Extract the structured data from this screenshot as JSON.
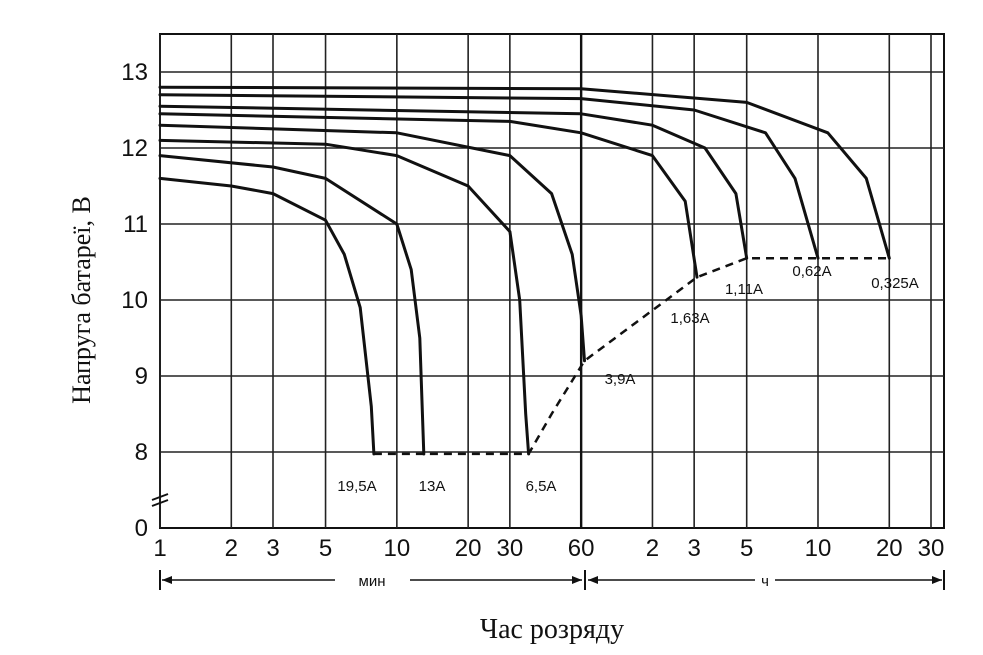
{
  "chart_data": {
    "type": "line",
    "ylabel": "Напруга батареї, В",
    "xlabel": "Час розряду",
    "x_scale": "log",
    "x_units": {
      "minutes_label": "мин",
      "hours_label": "ч"
    },
    "y_ticks": [
      "13",
      "12",
      "11",
      "10",
      "9",
      "8",
      "0"
    ],
    "x_ticks": [
      {
        "label": "1",
        "minutes": 1
      },
      {
        "label": "2",
        "minutes": 2
      },
      {
        "label": "3",
        "minutes": 3
      },
      {
        "label": "5",
        "minutes": 5
      },
      {
        "label": "10",
        "minutes": 10
      },
      {
        "label": "20",
        "minutes": 20
      },
      {
        "label": "30",
        "minutes": 30
      },
      {
        "label": "60",
        "minutes": 60
      },
      {
        "label": "2",
        "minutes": 120
      },
      {
        "label": "3",
        "minutes": 180
      },
      {
        "label": "5",
        "minutes": 300
      },
      {
        "label": "10",
        "minutes": 600
      },
      {
        "label": "20",
        "minutes": 1200
      },
      {
        "label": "30",
        "minutes": 1800
      }
    ],
    "series": [
      {
        "name": "19,5A",
        "points": [
          [
            1,
            11.6
          ],
          [
            2,
            11.5
          ],
          [
            3,
            11.4
          ],
          [
            5,
            11.05
          ],
          [
            6,
            10.6
          ],
          [
            7,
            9.9
          ],
          [
            7.8,
            8.6
          ],
          [
            8,
            7.8
          ]
        ]
      },
      {
        "name": "13A",
        "points": [
          [
            1,
            11.9
          ],
          [
            3,
            11.75
          ],
          [
            5,
            11.6
          ],
          [
            10,
            11.0
          ],
          [
            11.5,
            10.4
          ],
          [
            12.5,
            9.5
          ],
          [
            13,
            7.8
          ]
        ]
      },
      {
        "name": "6,5A",
        "points": [
          [
            1,
            12.1
          ],
          [
            5,
            12.05
          ],
          [
            10,
            11.9
          ],
          [
            20,
            11.5
          ],
          [
            30,
            10.9
          ],
          [
            33,
            10.0
          ],
          [
            35,
            8.5
          ],
          [
            36,
            7.8
          ]
        ]
      },
      {
        "name": "3,9A",
        "points": [
          [
            1,
            12.3
          ],
          [
            10,
            12.2
          ],
          [
            30,
            11.9
          ],
          [
            45,
            11.4
          ],
          [
            55,
            10.6
          ],
          [
            60,
            9.8
          ],
          [
            62,
            9.2
          ]
        ]
      },
      {
        "name": "1,63A",
        "points": [
          [
            1,
            12.45
          ],
          [
            30,
            12.35
          ],
          [
            60,
            12.2
          ],
          [
            120,
            11.9
          ],
          [
            165,
            11.3
          ],
          [
            185,
            10.3
          ]
        ]
      },
      {
        "name": "1,11A",
        "points": [
          [
            1,
            12.55
          ],
          [
            60,
            12.45
          ],
          [
            120,
            12.3
          ],
          [
            200,
            12.0
          ],
          [
            270,
            11.4
          ],
          [
            300,
            10.55
          ]
        ]
      },
      {
        "name": "0,62A",
        "points": [
          [
            1,
            12.7
          ],
          [
            60,
            12.65
          ],
          [
            180,
            12.5
          ],
          [
            360,
            12.2
          ],
          [
            480,
            11.6
          ],
          [
            600,
            10.55
          ]
        ]
      },
      {
        "name": "0,325A",
        "points": [
          [
            1,
            12.8
          ],
          [
            60,
            12.78
          ],
          [
            300,
            12.6
          ],
          [
            660,
            12.2
          ],
          [
            960,
            11.6
          ],
          [
            1200,
            10.55
          ]
        ]
      }
    ],
    "end_voltage_line": {
      "style": "dashed",
      "points": [
        [
          8,
          7.8
        ],
        [
          36,
          7.8
        ],
        [
          45,
          8.5
        ],
        [
          62,
          9.2
        ],
        [
          185,
          10.3
        ],
        [
          300,
          10.55
        ],
        [
          1200,
          10.55
        ]
      ]
    },
    "grid": true
  }
}
